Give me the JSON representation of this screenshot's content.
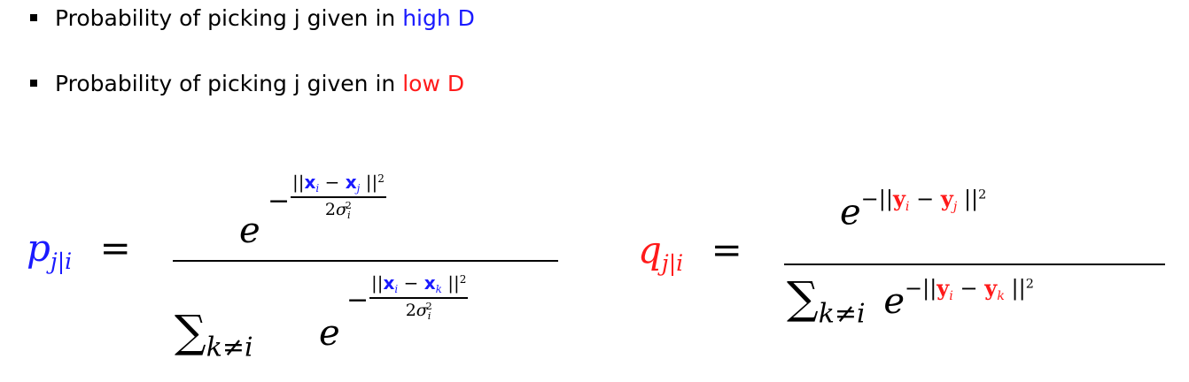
{
  "bullets": [
    {
      "prefix": "Probability of picking j given in ",
      "highlight": "high D",
      "color": "#1a1aff"
    },
    {
      "prefix": "Probability of picking j given in ",
      "highlight": "low D",
      "color": "#ff1a1a"
    }
  ],
  "colors": {
    "high_d": "#1a1aff",
    "low_d": "#ff1a1a",
    "text": "#000000"
  },
  "left_equation": {
    "lhs_symbol": "p",
    "lhs_subscript": "j|i",
    "equals": "=",
    "numerator_base": "e",
    "numerator_exponent_minus": "−",
    "numerator_exponent_num": "||x_i − x_j||²",
    "numerator_exponent_den": "2σ_i²",
    "denominator_sum": "∑",
    "denominator_sum_sub": "k≠i",
    "denominator_base": "e",
    "denominator_exponent_minus": "−",
    "denominator_exponent_num": "||x_i − x_k||²",
    "denominator_exponent_den": "2σ_i²"
  },
  "right_equation": {
    "lhs_symbol": "q",
    "lhs_subscript": "j|i",
    "equals": "=",
    "numerator": "e^(−||y_i − y_j||²)",
    "denominator_sum": "∑",
    "denominator_sum_sub": "k≠i",
    "denominator": "e^(−||y_i − y_k||²)"
  }
}
